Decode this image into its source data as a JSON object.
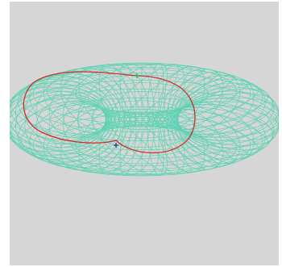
{
  "scene": {
    "background_color": "#d6d6d6",
    "mesh_color": "#5fd3b3",
    "curve_color": "#d42a2a",
    "start_marker_color": "#2ea84a",
    "end_marker_color": "#2a2a8a",
    "icons": {
      "torus": "wireframe-torus-icon",
      "start_marker": "plus-marker-icon",
      "end_marker": "plus-marker-icon"
    }
  }
}
